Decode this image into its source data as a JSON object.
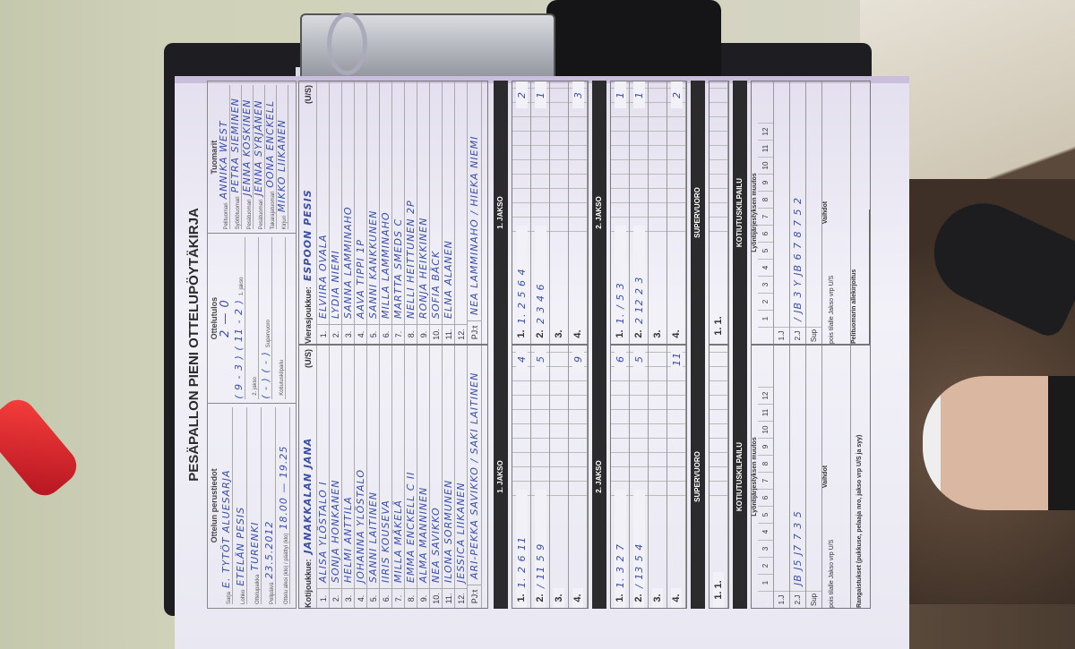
{
  "form": {
    "title": "PESÄPALLON PIENI OTTELUPÖYTÄKIRJA",
    "basic": {
      "title": "Ottelun perustiedot",
      "fields": [
        {
          "label": "Sarja",
          "value": "E. TYTÖT ALUESARJA"
        },
        {
          "label": "Lohko",
          "value": "ETELÄN PESIS"
        },
        {
          "label": "Ottelupaikka",
          "value": "TURENKI"
        },
        {
          "label": "Pelipäivä",
          "value": "23.5.2012"
        },
        {
          "label": "Ottelu alkoi (klo) / päättyi (klo)",
          "value": "18.00 — 19.25"
        }
      ]
    },
    "result": {
      "title": "Ottelutulos",
      "total": "2 — 0",
      "rows": [
        {
          "label": "1. jakso",
          "value": "( 9 - 3 )  ( 11 - 2 )"
        },
        {
          "label": "2. jakso",
          "value": ""
        },
        {
          "label": "Supervuoro",
          "value": "( - )  ( - )"
        },
        {
          "label": "Kotiutuskilpailu",
          "value": ""
        }
      ]
    },
    "referees": {
      "title": "Tuomarit",
      "rows": [
        {
          "label": "Pelituomari",
          "value": "ANNIKA WEST"
        },
        {
          "label": "Syöttötuomari",
          "value": "PETRA SIEMINEN"
        },
        {
          "label": "Pesätuomari",
          "value": "JENNA KOSKINEN"
        },
        {
          "label": "Pesätuomari",
          "value": "JENNA SYRJÄNEN"
        },
        {
          "label": "Takarajatuomari",
          "value": "OONA ENCKELL"
        },
        {
          "label": "Kirjuri",
          "value": "MIKKO LIIKANEN"
        }
      ]
    },
    "home": {
      "label": "Kotijoukkue:",
      "name": "JANAKKALAN JANA",
      "us": "(U/S)",
      "players": [
        "ALISA YLÖSTALO  I",
        "SONJA HONKANEN",
        "HELMI ANTTILA",
        "JOHANNA YLÖSTALO",
        "SANNI LAITINEN",
        "IIRIS KOUSEVA",
        "MILLA MÄKELÄ",
        "EMMA ENCKELL  C II",
        "ALMA MANNINEN",
        "NEA SAVIKKO",
        "ILONA SORMUNEN",
        "JESSICA LIIKANEN"
      ],
      "pj_label": "PJ:t",
      "pj": "ARI-PEKKA SAVIKKO / SAKI LAITINEN",
      "jakso1": [
        {
          "n": "1.",
          "seq": "1. 2 6 11",
          "score": "4"
        },
        {
          "n": "2.",
          "seq": "/ 11 5 9",
          "score": "5"
        },
        {
          "n": "3.",
          "seq": "",
          "score": ""
        },
        {
          "n": "4.",
          "seq": "",
          "score": "9"
        }
      ],
      "jakso2": [
        {
          "n": "1.",
          "seq": "1. 3 2 7",
          "score": "6"
        },
        {
          "n": "2.",
          "seq": "/ 13 5 4",
          "score": "5"
        },
        {
          "n": "3.",
          "seq": "",
          "score": ""
        },
        {
          "n": "4.",
          "seq": "",
          "score": "11"
        }
      ],
      "sup": "1. 1.",
      "lyo_2j": "JB  J5  J7  7 3 5"
    },
    "visitor": {
      "label": "Vierasjoukkue:",
      "name": "ESPOON PESIS",
      "us": "(U/S)",
      "players": [
        "ELVIIRA OVALA",
        "LYDIA NIEMI",
        "SANNA LAMMINAHO",
        "AAVA TIPPI  1p",
        "SANNI KANKKUNEN",
        "MILLA LAMMINAHO",
        "MARTTA SMEDS  C",
        "NELLI HEITTUNEN  2p",
        "RONJA HEIKKINEN",
        "SOFIA BÄCK",
        "ELNA ALANEN",
        ""
      ],
      "pj_label": "PJ:t",
      "pj": "NEA LAMMINAHO / HIEKA NIEMI",
      "jakso1": [
        {
          "n": "1.",
          "seq": "1. 2 5 6 4",
          "score": "2"
        },
        {
          "n": "2.",
          "seq": "2 3 4 6",
          "score": "1"
        },
        {
          "n": "3.",
          "seq": "",
          "score": ""
        },
        {
          "n": "4.",
          "seq": "",
          "score": "3"
        }
      ],
      "jakso2": [
        {
          "n": "1.",
          "seq": "1. / 5 3",
          "score": "1"
        },
        {
          "n": "2.",
          "seq": "2 12 2 3",
          "score": "1"
        },
        {
          "n": "3.",
          "seq": "",
          "score": ""
        },
        {
          "n": "4.",
          "seq": "",
          "score": "2"
        }
      ],
      "sup": "1. 1.",
      "lyo_2j": "/ JB 3 Y JB 6 7 8 7 5 2"
    },
    "bands": {
      "jakso1": "1. JAKSO",
      "jakso2": "2. JAKSO",
      "sup": "SUPERVUORO",
      "kotiutus": "KOTIUTUSKILPAILU"
    },
    "lyonti": {
      "title": "Lyöntijärjestyksen muutos",
      "cols": [
        "1",
        "2",
        "3",
        "4",
        "5",
        "6",
        "7",
        "8",
        "9",
        "10",
        "11",
        "12"
      ],
      "rows": [
        "1.J",
        "2.J",
        "Sup"
      ],
      "vaihdot": "Vaihdot",
      "vaihdot_cols": "pois  tilalle  Jakso  vrp  U/S"
    },
    "rangaistukset": "Rangaistukset (pukkuse, pelaaja nro, jakso vrp U/S ja syy)",
    "signature": "Pelituomarin allekirjoitus"
  }
}
